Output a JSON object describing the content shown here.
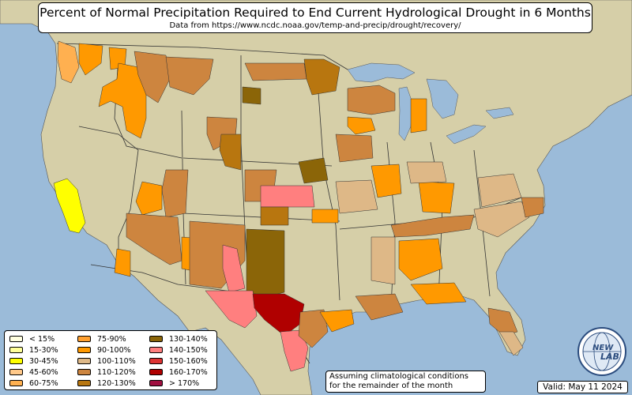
{
  "header": {
    "title": "Percent of Normal Precipitation Required to End Current Hydrological Drought in 6 Months",
    "subtitle": "Data from https://www.ncdc.noaa.gov/temp-and-precip/drought/recovery/"
  },
  "colors": {
    "ocean": "#9bbbd9",
    "land": "#d8d2ae",
    "mountain": "#b8ad8a",
    "lake": "#9bbbd9",
    "border": "#444444"
  },
  "legend": {
    "columns": [
      [
        {
          "label": "< 15%",
          "color": "#ffffe0"
        },
        {
          "label": "15-30%",
          "color": "#ffff99"
        },
        {
          "label": "30-45%",
          "color": "#ffff00"
        },
        {
          "label": "45-60%",
          "color": "#ffc98a"
        },
        {
          "label": "60-75%",
          "color": "#ffb050"
        }
      ],
      [
        {
          "label": "75-90%",
          "color": "#ffa030"
        },
        {
          "label": "90-100%",
          "color": "#ff9900"
        },
        {
          "label": "100-110%",
          "color": "#deb887"
        },
        {
          "label": "110-120%",
          "color": "#cd853f"
        },
        {
          "label": "120-130%",
          "color": "#b8760f"
        }
      ],
      [
        {
          "label": "130-140%",
          "color": "#8b6508"
        },
        {
          "label": "140-150%",
          "color": "#ff7f7f"
        },
        {
          "label": "150-160%",
          "color": "#dd3333"
        },
        {
          "label": "160-170%",
          "color": "#b00000"
        },
        {
          "label": "> 170%",
          "color": "#a01040"
        }
      ]
    ]
  },
  "drought_regions": [
    {
      "name": "california-central-valley",
      "category": "30-45%",
      "color": "#ffff00"
    },
    {
      "name": "washington-coast",
      "category": "60-75%",
      "color": "#ffb050"
    },
    {
      "name": "washington-cascades",
      "category": "90-100%",
      "color": "#ff9900"
    },
    {
      "name": "oregon-east",
      "category": "90-100%",
      "color": "#ff9900"
    },
    {
      "name": "idaho-central",
      "category": "90-100%",
      "color": "#ff9900"
    },
    {
      "name": "montana-west",
      "category": "110-120%",
      "color": "#cd853f"
    },
    {
      "name": "montana-central",
      "category": "110-120%",
      "color": "#cd853f"
    },
    {
      "name": "wyoming-west",
      "category": "110-120%",
      "color": "#cd853f"
    },
    {
      "name": "wyoming-south",
      "category": "120-130%",
      "color": "#b8760f"
    },
    {
      "name": "north-dakota",
      "category": "110-120%",
      "color": "#cd853f"
    },
    {
      "name": "south-dakota-west",
      "category": "130-140%",
      "color": "#8b6508"
    },
    {
      "name": "minnesota-north",
      "category": "120-130%",
      "color": "#b8760f"
    },
    {
      "name": "michigan-upper",
      "category": "110-120%",
      "color": "#cd853f"
    },
    {
      "name": "wisconsin",
      "category": "90-100%",
      "color": "#ff9900"
    },
    {
      "name": "utah-nevada-east",
      "category": "110-120%",
      "color": "#cd853f"
    },
    {
      "name": "nevada-central",
      "category": "90-100%",
      "color": "#ff9900"
    },
    {
      "name": "arizona",
      "category": "110-120%",
      "color": "#cd853f"
    },
    {
      "name": "arizona-southwest",
      "category": "90-100%",
      "color": "#ff9900"
    },
    {
      "name": "new-mexico-west",
      "category": "90-100%",
      "color": "#ff9900"
    },
    {
      "name": "new-mexico-central",
      "category": "110-120%",
      "color": "#cd853f"
    },
    {
      "name": "new-mexico-east",
      "category": "130-140%",
      "color": "#8b6508"
    },
    {
      "name": "new-mexico-south",
      "category": "140-150%",
      "color": "#ff7f7f"
    },
    {
      "name": "west-texas",
      "category": "140-150%",
      "color": "#ff7f7f"
    },
    {
      "name": "central-texas",
      "category": "160-170%",
      "color": "#b00000"
    },
    {
      "name": "south-texas",
      "category": "140-150%",
      "color": "#ff7f7f"
    },
    {
      "name": "east-texas",
      "category": "110-120%",
      "color": "#cd853f"
    },
    {
      "name": "texas-coast",
      "category": "90-100%",
      "color": "#ff9900"
    },
    {
      "name": "colorado-east",
      "category": "110-120%",
      "color": "#cd853f"
    },
    {
      "name": "kansas-west",
      "category": "140-150%",
      "color": "#ff7f7f"
    },
    {
      "name": "kansas-south",
      "category": "120-130%",
      "color": "#b8760f"
    },
    {
      "name": "oklahoma-north",
      "category": "90-100%",
      "color": "#ff9900"
    },
    {
      "name": "nebraska-east",
      "category": "130-140%",
      "color": "#8b6508"
    },
    {
      "name": "iowa",
      "category": "110-120%",
      "color": "#cd853f"
    },
    {
      "name": "missouri",
      "category": "100-110%",
      "color": "#deb887"
    },
    {
      "name": "illinois",
      "category": "90-100%",
      "color": "#ff9900"
    },
    {
      "name": "kentucky",
      "category": "90-100%",
      "color": "#ff9900"
    },
    {
      "name": "tennessee",
      "category": "110-120%",
      "color": "#cd853f"
    },
    {
      "name": "mississippi",
      "category": "90-100%",
      "color": "#ff9900"
    },
    {
      "name": "alabama",
      "category": "100-110%",
      "color": "#deb887"
    },
    {
      "name": "louisiana",
      "category": "110-120%",
      "color": "#cd853f"
    },
    {
      "name": "gulf-coast",
      "category": "90-100%",
      "color": "#ff9900"
    },
    {
      "name": "florida-peninsula",
      "category": "110-120%",
      "color": "#cd853f"
    },
    {
      "name": "florida-south",
      "category": "100-110%",
      "color": "#deb887"
    },
    {
      "name": "carolinas",
      "category": "100-110%",
      "color": "#deb887"
    },
    {
      "name": "north-carolina-east",
      "category": "110-120%",
      "color": "#cd853f"
    },
    {
      "name": "virginia",
      "category": "100-110%",
      "color": "#deb887"
    },
    {
      "name": "michigan-lower",
      "category": "90-100%",
      "color": "#ff9900"
    },
    {
      "name": "indiana-ohio",
      "category": "100-110%",
      "color": "#deb887"
    }
  ],
  "note": {
    "line1": "Assuming climatological conditions",
    "line2": "for the remainder of the month"
  },
  "valid": "Valid: May 11 2024",
  "logo": {
    "text_top": "NEW",
    "text_bottom": "LAB"
  }
}
